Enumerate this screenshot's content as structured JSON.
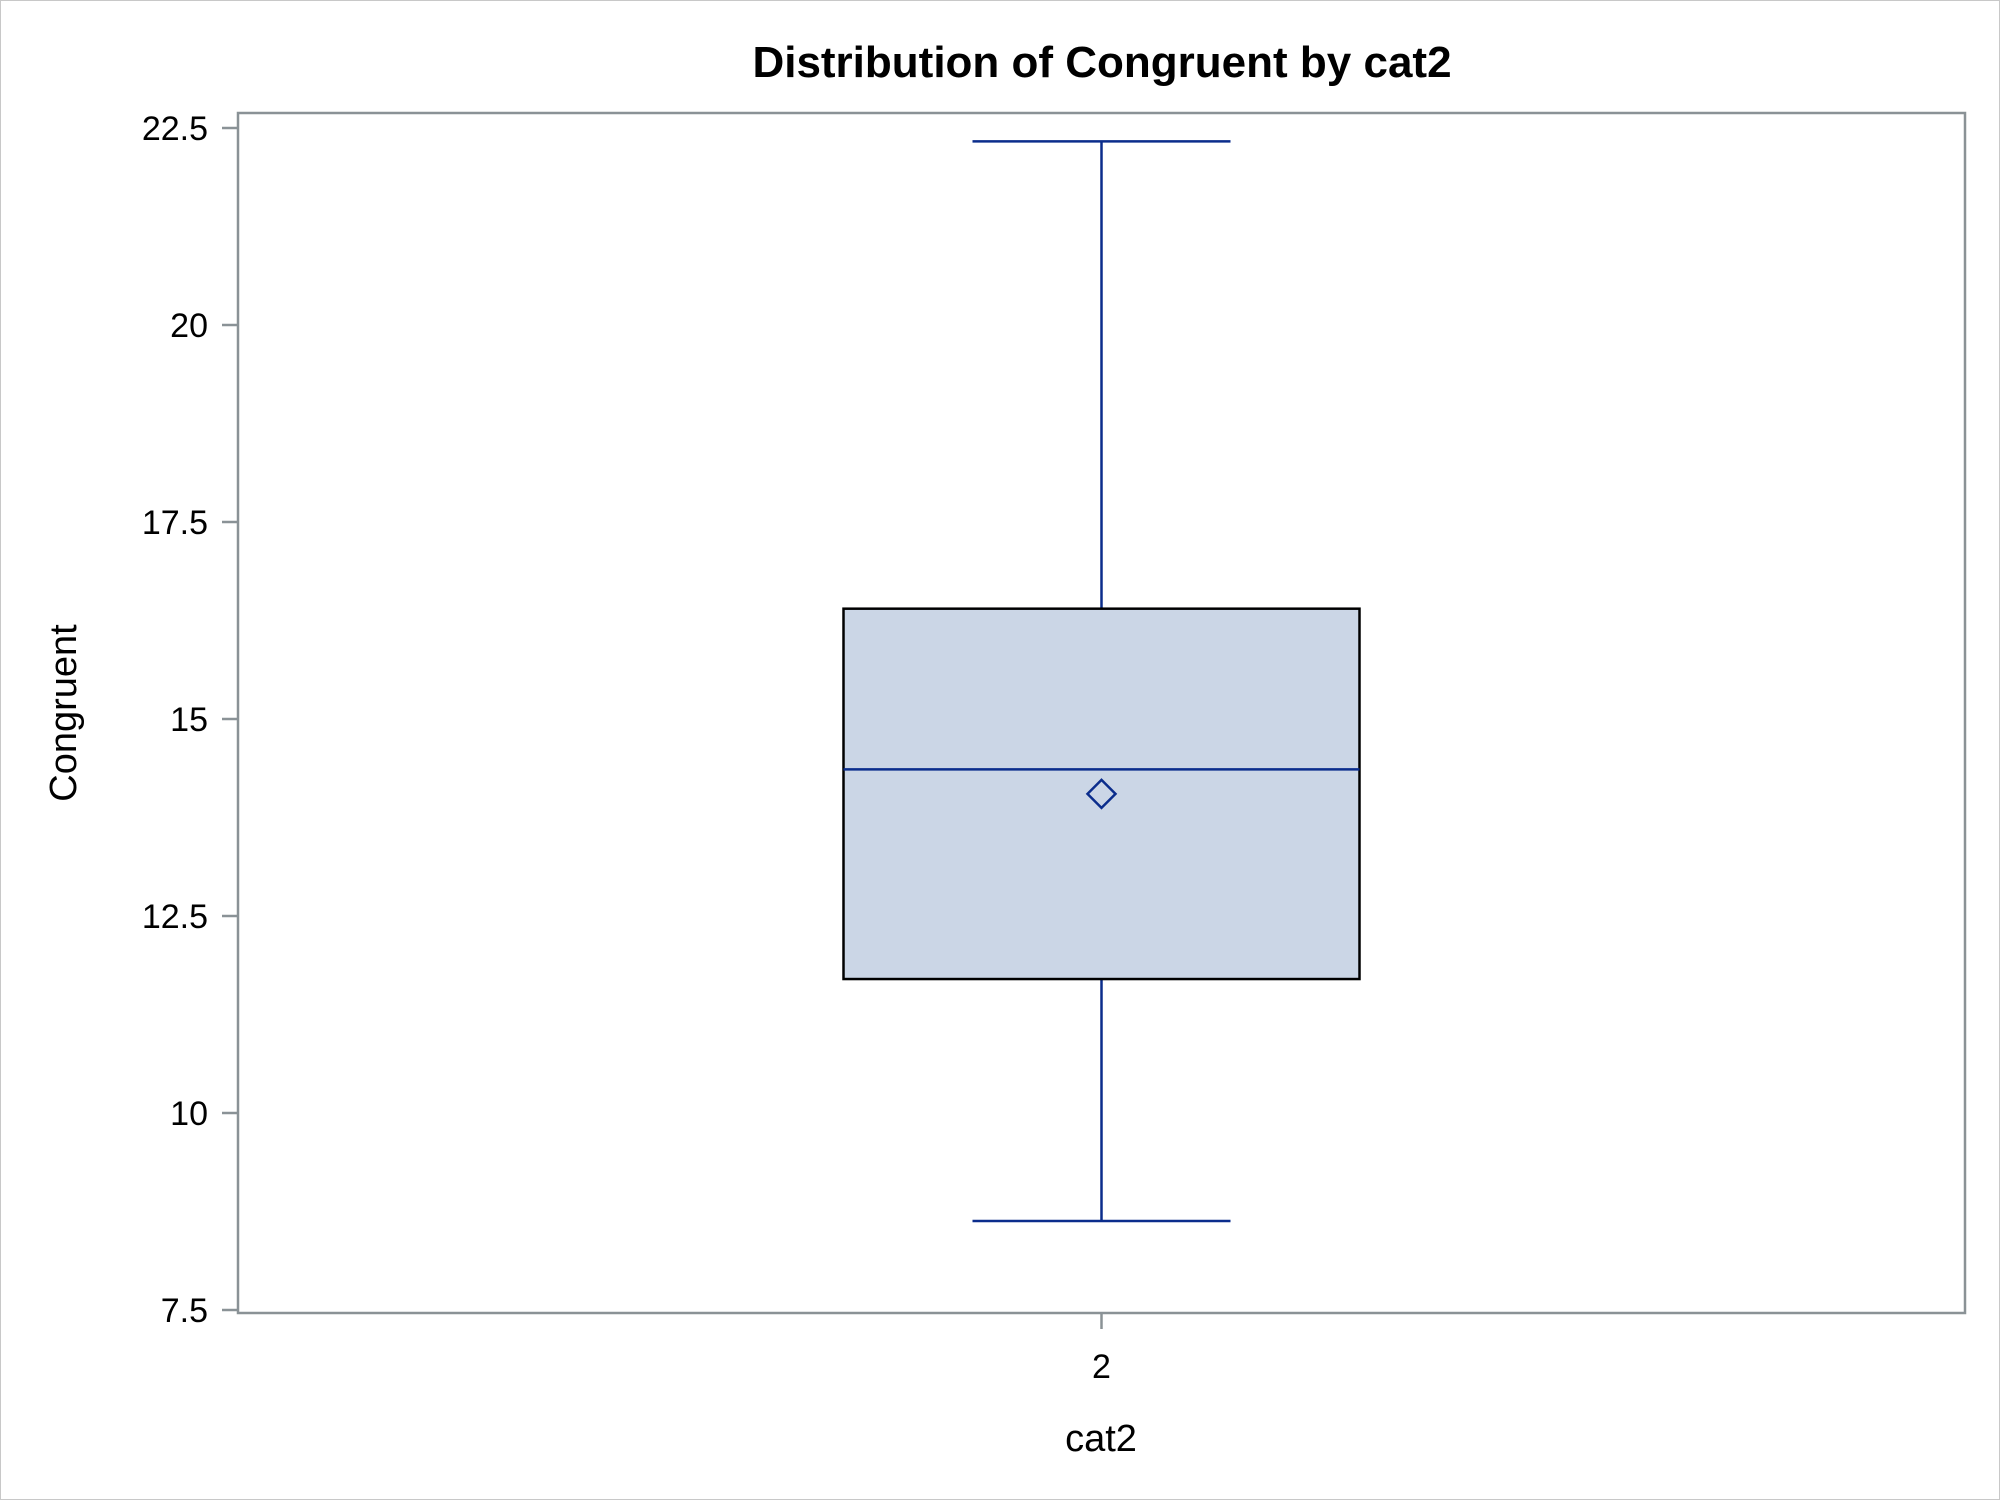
{
  "chart_data": {
    "type": "boxplot",
    "title": "Distribution of Congruent by cat2",
    "xlabel": "cat2",
    "ylabel": "Congruent",
    "categories": [
      "2"
    ],
    "ylim": [
      7.5,
      22.5
    ],
    "yticks": [
      7.5,
      10,
      12.5,
      15,
      17.5,
      20,
      22.5
    ],
    "ytick_labels": [
      "7.5",
      "10",
      "12.5",
      "15",
      "17.5",
      "20",
      "22.5"
    ],
    "boxes": [
      {
        "category": "2",
        "min": 8.63,
        "q1": 11.7,
        "median": 14.36,
        "q3": 16.4,
        "max": 22.33,
        "mean": 14.05
      }
    ],
    "grid": false,
    "colors": {
      "box_fill": "#cbd6e6",
      "box_edge": "#000000",
      "whisker": "#0b2d8c",
      "frame": "#8a9296"
    }
  }
}
